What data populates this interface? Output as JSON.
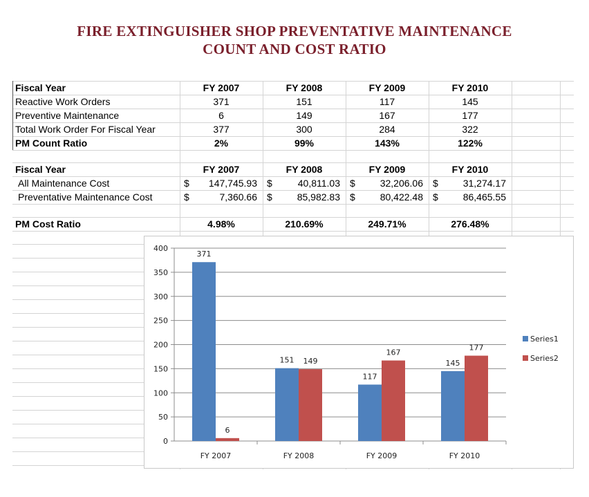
{
  "title": {
    "line1": "FIRE EXTINGUISHER SHOP PREVENTATIVE MAINTENANCE",
    "line2": "COUNT AND COST RATIO"
  },
  "count_table": {
    "header": [
      "Fiscal Year",
      "FY 2007",
      "FY 2008",
      "FY 2009",
      "FY 2010"
    ],
    "rows": [
      {
        "label": "Reactive Work Orders",
        "values": [
          "371",
          "151",
          "117",
          "145"
        ]
      },
      {
        "label": "Preventive Maintenance",
        "values": [
          "6",
          "149",
          "167",
          "177"
        ]
      },
      {
        "label": "Total Work Order For Fiscal Year",
        "values": [
          "377",
          "300",
          "284",
          "322"
        ]
      },
      {
        "label": "PM Count Ratio",
        "values": [
          "2%",
          "99%",
          "143%",
          "122%"
        ]
      }
    ]
  },
  "cost_table": {
    "header": [
      "Fiscal Year",
      "FY 2007",
      "FY 2008",
      "FY 2009",
      "FY 2010"
    ],
    "currency_symbol": "$",
    "rows": [
      {
        "label": "All Maintenance Cost",
        "values": [
          "147,745.93",
          "40,811.03",
          "32,206.06",
          "31,274.17"
        ]
      },
      {
        "label": "Preventative Maintenance Cost",
        "values": [
          "7,360.66",
          "85,982.83",
          "80,422.48",
          "86,465.55"
        ]
      }
    ],
    "ratio": {
      "label": "PM Cost Ratio",
      "values": [
        "4.98%",
        "210.69%",
        "249.71%",
        "276.48%"
      ]
    }
  },
  "chart_data": {
    "type": "bar",
    "categories": [
      "FY 2007",
      "FY 2008",
      "FY 2009",
      "FY 2010"
    ],
    "series": [
      {
        "name": "Series1",
        "values": [
          371,
          151,
          117,
          145
        ],
        "color": "#4f81bd"
      },
      {
        "name": "Series2",
        "values": [
          6,
          149,
          167,
          177
        ],
        "color": "#c0504d"
      }
    ],
    "ylim": [
      0,
      400
    ],
    "yticks": [
      0,
      50,
      100,
      150,
      200,
      250,
      300,
      350,
      400
    ],
    "grid": true,
    "legend_position": "right",
    "data_labels": true
  }
}
